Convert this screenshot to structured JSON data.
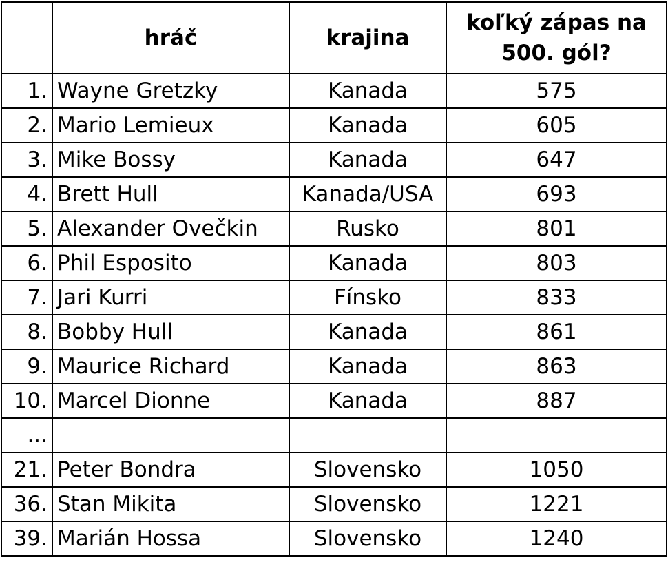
{
  "headers": {
    "rank": "",
    "player": "hráč",
    "country": "krajina",
    "games_line1": "koľký zápas na",
    "games_line2": "500. gól?"
  },
  "rows": [
    {
      "rank": "1.",
      "player": "Wayne Gretzky",
      "country": "Kanada",
      "games": "575"
    },
    {
      "rank": "2.",
      "player": "Mario Lemieux",
      "country": "Kanada",
      "games": "605"
    },
    {
      "rank": "3.",
      "player": "Mike Bossy",
      "country": "Kanada",
      "games": "647"
    },
    {
      "rank": "4.",
      "player": "Brett Hull",
      "country": "Kanada/USA",
      "games": "693"
    },
    {
      "rank": "5.",
      "player": "Alexander Ovečkin",
      "country": "Rusko",
      "games": "801"
    },
    {
      "rank": "6.",
      "player": "Phil Esposito",
      "country": "Kanada",
      "games": "803"
    },
    {
      "rank": "7.",
      "player": "Jari Kurri",
      "country": "Fínsko",
      "games": "833"
    },
    {
      "rank": "8.",
      "player": "Bobby Hull",
      "country": "Kanada",
      "games": "861"
    },
    {
      "rank": "9.",
      "player": "Maurice Richard",
      "country": "Kanada",
      "games": "863"
    },
    {
      "rank": "10.",
      "player": "Marcel Dionne",
      "country": "Kanada",
      "games": "887"
    },
    {
      "rank": "...",
      "player": "",
      "country": "",
      "games": ""
    },
    {
      "rank": "21.",
      "player": "Peter Bondra",
      "country": "Slovensko",
      "games": "1050"
    },
    {
      "rank": "36.",
      "player": "Stan Mikita",
      "country": "Slovensko",
      "games": "1221"
    },
    {
      "rank": "39.",
      "player": "Marián Hossa",
      "country": "Slovensko",
      "games": "1240"
    }
  ]
}
